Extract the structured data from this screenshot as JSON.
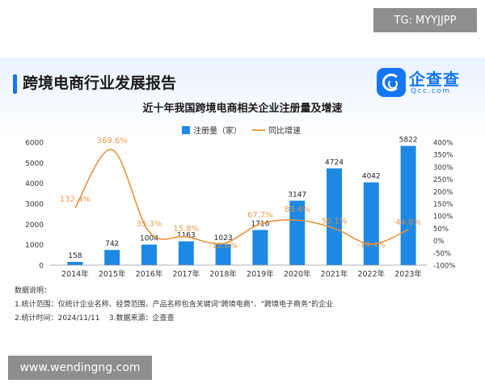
{
  "overlay": {
    "top_badge": "TG: MYYJJPP",
    "bottom_badge": "www.wendingng.com"
  },
  "report": {
    "title": "跨境电商行业发展报告",
    "logo_name": "企查查",
    "logo_domain": "Qcc.com"
  },
  "chart_data": {
    "type": "bar",
    "title": "近十年我国跨境电商相关企业注册量及增速",
    "categories": [
      "2014年",
      "2015年",
      "2016年",
      "2017年",
      "2018年",
      "2019年",
      "2020年",
      "2021年",
      "2022年",
      "2023年"
    ],
    "series": [
      {
        "name": "注册量（家）",
        "type": "bar",
        "axis": "left",
        "color": "#1e88e5",
        "values": [
          158,
          742,
          1004,
          1163,
          1023,
          1716,
          3147,
          4724,
          4042,
          5822
        ],
        "labels": [
          "158",
          "742",
          "1004",
          "1163",
          "1023",
          "1716",
          "3147",
          "4724",
          "4042",
          "5822"
        ]
      },
      {
        "name": "同比增速",
        "type": "line",
        "axis": "right",
        "color": "#e8913a",
        "values": [
          132.4,
          369.6,
          35.3,
          15.8,
          -12.0,
          67.7,
          83.4,
          50.1,
          -14.4,
          44.0
        ],
        "labels": [
          "132.4%",
          "369.6%",
          "35.3%",
          "15.8%",
          "-12.0%",
          "67.7%",
          "83.4%",
          "50.1%",
          "-14.4%",
          "44.0%"
        ]
      }
    ],
    "y_left": {
      "ylim": [
        0,
        6000
      ],
      "ticks": [
        "0",
        "1000",
        "2000",
        "3000",
        "4000",
        "5000",
        "6000"
      ]
    },
    "y_right": {
      "ylim": [
        -100,
        400
      ],
      "ticks": [
        "-100%",
        "-50%",
        "0%",
        "50%",
        "100%",
        "150%",
        "200%",
        "250%",
        "300%",
        "350%",
        "400%"
      ]
    },
    "legend_position": "top-center",
    "grid": false
  },
  "notes": {
    "heading": "数据说明：",
    "scope": "1.统计范围：仅统计企业名称、经营范围、产品名称包含关键词\"跨境电商\"、\"跨境电子商务\"的企业",
    "time": "2.统计时间：2024/11/11",
    "source": "3.数据来源：企查查"
  }
}
